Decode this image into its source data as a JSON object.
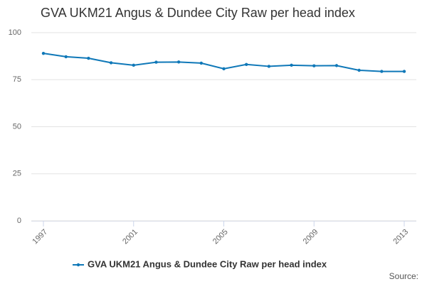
{
  "chart_data": {
    "type": "line",
    "title": "GVA UKM21 Angus & Dundee City Raw per head index",
    "x": [
      1997,
      1998,
      1999,
      2000,
      2001,
      2002,
      2003,
      2004,
      2005,
      2006,
      2007,
      2008,
      2009,
      2010,
      2011,
      2012,
      2013
    ],
    "series": [
      {
        "name": "GVA UKM21 Angus & Dundee City Raw per head index",
        "color": "#0f78b8",
        "values": [
          89,
          87.2,
          86.4,
          84,
          82.7,
          84.3,
          84.4,
          83.8,
          80.8,
          83.1,
          82.1,
          82.7,
          82.4,
          82.5,
          80,
          79.4,
          79.4
        ]
      }
    ],
    "xlim": [
      1997,
      2013
    ],
    "xticks": [
      1997,
      2001,
      2005,
      2009,
      2013
    ],
    "ylim": [
      0,
      100
    ],
    "yticks": [
      0,
      25,
      50,
      75,
      100
    ],
    "grid": true,
    "source_label": "Source:"
  }
}
